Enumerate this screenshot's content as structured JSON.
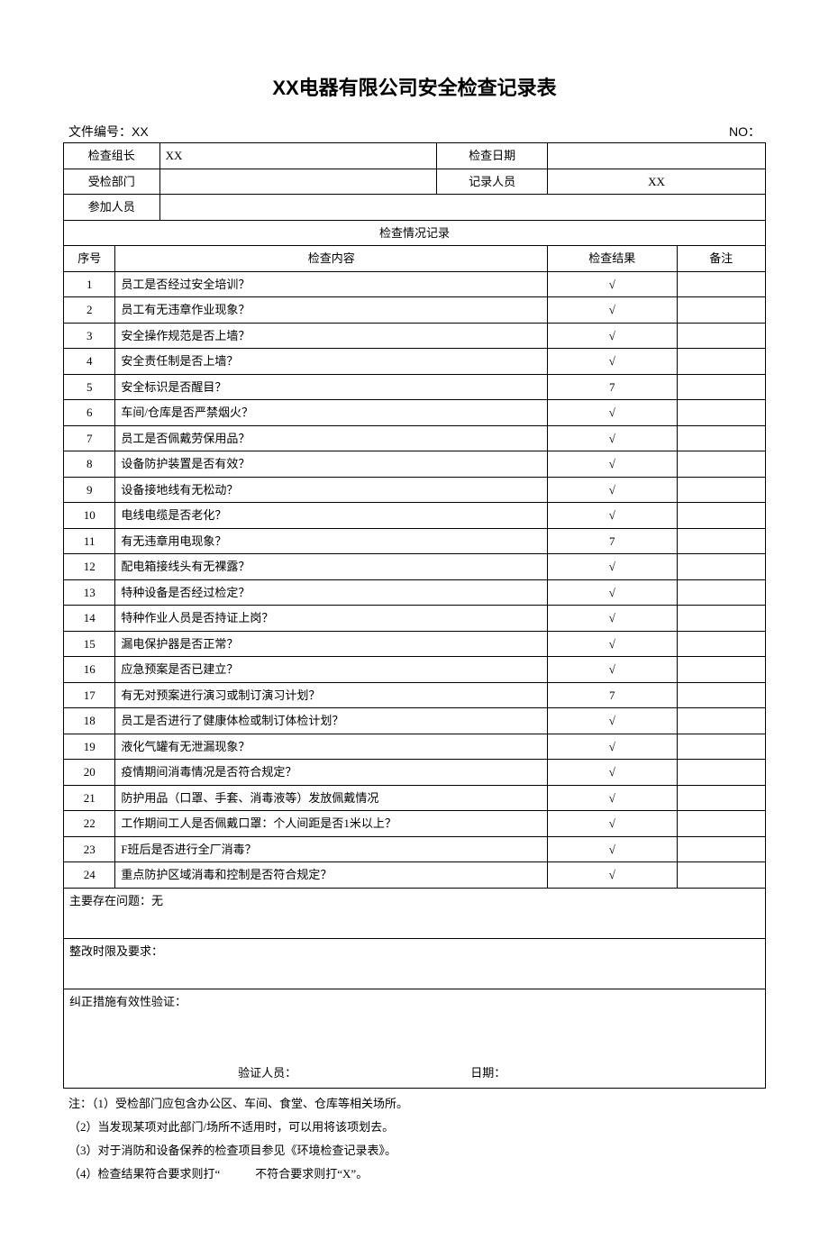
{
  "title": "XX电器有限公司安全检查记录表",
  "meta": {
    "docNoLabel": "文件编号：XX",
    "serialLabel": "NO：",
    "leaderLabel": "检查组长",
    "leaderValue": "XX",
    "checkDateLabel": "检查日期",
    "checkDateValue": "",
    "deptLabel": "受检部门",
    "deptValue": "",
    "recorderLabel": "记录人员",
    "recorderValue": "XX",
    "attendeesLabel": "参加人员",
    "attendeesValue": ""
  },
  "recordHeader": "检查情况记录",
  "columns": {
    "seq": "序号",
    "content": "检查内容",
    "result": "检查结果",
    "remark": "备注"
  },
  "rows": [
    {
      "seq": "1",
      "content": "员工是否经过安全培训？",
      "result": "√",
      "remark": ""
    },
    {
      "seq": "2",
      "content": "员工有无违章作业现象？",
      "result": "√",
      "remark": ""
    },
    {
      "seq": "3",
      "content": "安全操作规范是否上墙？",
      "result": "√",
      "remark": ""
    },
    {
      "seq": "4",
      "content": "安全责任制是否上墙？",
      "result": "√",
      "remark": ""
    },
    {
      "seq": "5",
      "content": "安全标识是否醒目？",
      "result": "7",
      "remark": ""
    },
    {
      "seq": "6",
      "content": "车间/仓库是否严禁烟火？",
      "result": "√",
      "remark": ""
    },
    {
      "seq": "7",
      "content": "员工是否佩戴劳保用品？",
      "result": "√",
      "remark": ""
    },
    {
      "seq": "8",
      "content": "设备防护装置是否有效？",
      "result": "√",
      "remark": ""
    },
    {
      "seq": "9",
      "content": "设备接地线有无松动？",
      "result": "√",
      "remark": ""
    },
    {
      "seq": "10",
      "content": "电线电缆是否老化？",
      "result": "√",
      "remark": ""
    },
    {
      "seq": "11",
      "content": "有无违章用电现象？",
      "result": "7",
      "remark": ""
    },
    {
      "seq": "12",
      "content": "配电箱接线头有无裸露？",
      "result": "√",
      "remark": ""
    },
    {
      "seq": "13",
      "content": "特种设备是否经过检定？",
      "result": "√",
      "remark": ""
    },
    {
      "seq": "14",
      "content": "特种作业人员是否持证上岗？",
      "result": "√",
      "remark": ""
    },
    {
      "seq": "15",
      "content": "漏电保护器是否正常？",
      "result": "√",
      "remark": ""
    },
    {
      "seq": "16",
      "content": "应急预案是否已建立？",
      "result": "√",
      "remark": ""
    },
    {
      "seq": "17",
      "content": "有无对预案进行演习或制订演习计划？",
      "result": "7",
      "remark": ""
    },
    {
      "seq": "18",
      "content": "员工是否进行了健康体检或制订体检计划？",
      "result": "√",
      "remark": ""
    },
    {
      "seq": "19",
      "content": "液化气罐有无泄漏现象？",
      "result": "√",
      "remark": ""
    },
    {
      "seq": "20",
      "content": "疫情期间消毒情况是否符合规定？",
      "result": "√",
      "remark": ""
    },
    {
      "seq": "21",
      "content": "防护用品（口罩、手套、消毒液等）发放佩戴情况",
      "result": "√",
      "remark": ""
    },
    {
      "seq": "22",
      "content": "工作期间工人是否佩戴口罩：个人间距是否1米以上？",
      "result": "√",
      "remark": ""
    },
    {
      "seq": "23",
      "content": "F班后是否进行全厂消毒？",
      "result": "√",
      "remark": ""
    },
    {
      "seq": "24",
      "content": "重点防护区域消毒和控制是否符合规定？",
      "result": "√",
      "remark": ""
    }
  ],
  "footer": {
    "issues": "主要存在问题：无",
    "deadline": "整改时限及要求：",
    "verify": "纠正措施有效性验证：",
    "verifierLabel": "验证人员：",
    "verifyDateLabel": "日期："
  },
  "notes": [
    "注：（1）受检部门应包含办公区、车间、食堂、仓库等相关场所。",
    "（2）当发现某项对此部门/场所不适用时，可以用将该项划去。",
    "（3）对于消防和设备保养的检查项目参见《环境检查记录表》。",
    "（4）检查结果符合要求则打“　　　不符合要求则打“X”。"
  ]
}
